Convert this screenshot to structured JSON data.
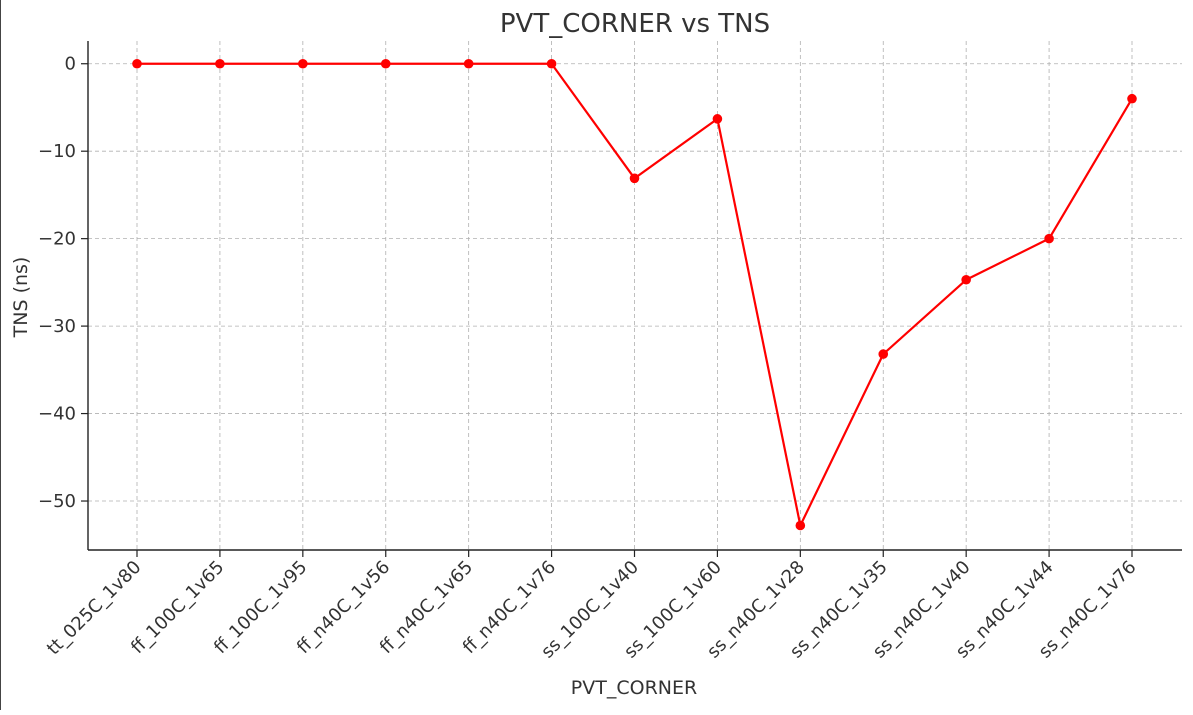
{
  "chart_data": {
    "type": "line",
    "title": "PVT_CORNER vs TNS",
    "xlabel": "PVT_CORNER",
    "ylabel": "TNS (ns)",
    "categories": [
      "tt_025C_1v80",
      "ff_100C_1v65",
      "ff_100C_1v95",
      "ff_n40C_1v56",
      "ff_n40C_1v65",
      "ff_n40C_1v76",
      "ss_100C_1v40",
      "ss_100C_1v60",
      "ss_n40C_1v28",
      "ss_n40C_1v35",
      "ss_n40C_1v40",
      "ss_n40C_1v44",
      "ss_n40C_1v76"
    ],
    "values": [
      0,
      0,
      0,
      0,
      0,
      0,
      -13.1,
      -6.3,
      -52.8,
      -33.2,
      -24.7,
      -20.0,
      -4.0
    ],
    "yticks": [
      0,
      -10,
      -20,
      -30,
      -40,
      -50
    ],
    "ytick_labels": [
      "0",
      "−10",
      "−20",
      "−30",
      "−40",
      "−50"
    ],
    "ylim": [
      -55.6,
      2.6
    ],
    "grid": true,
    "line_color": "#ff0000",
    "marker": "circle"
  }
}
